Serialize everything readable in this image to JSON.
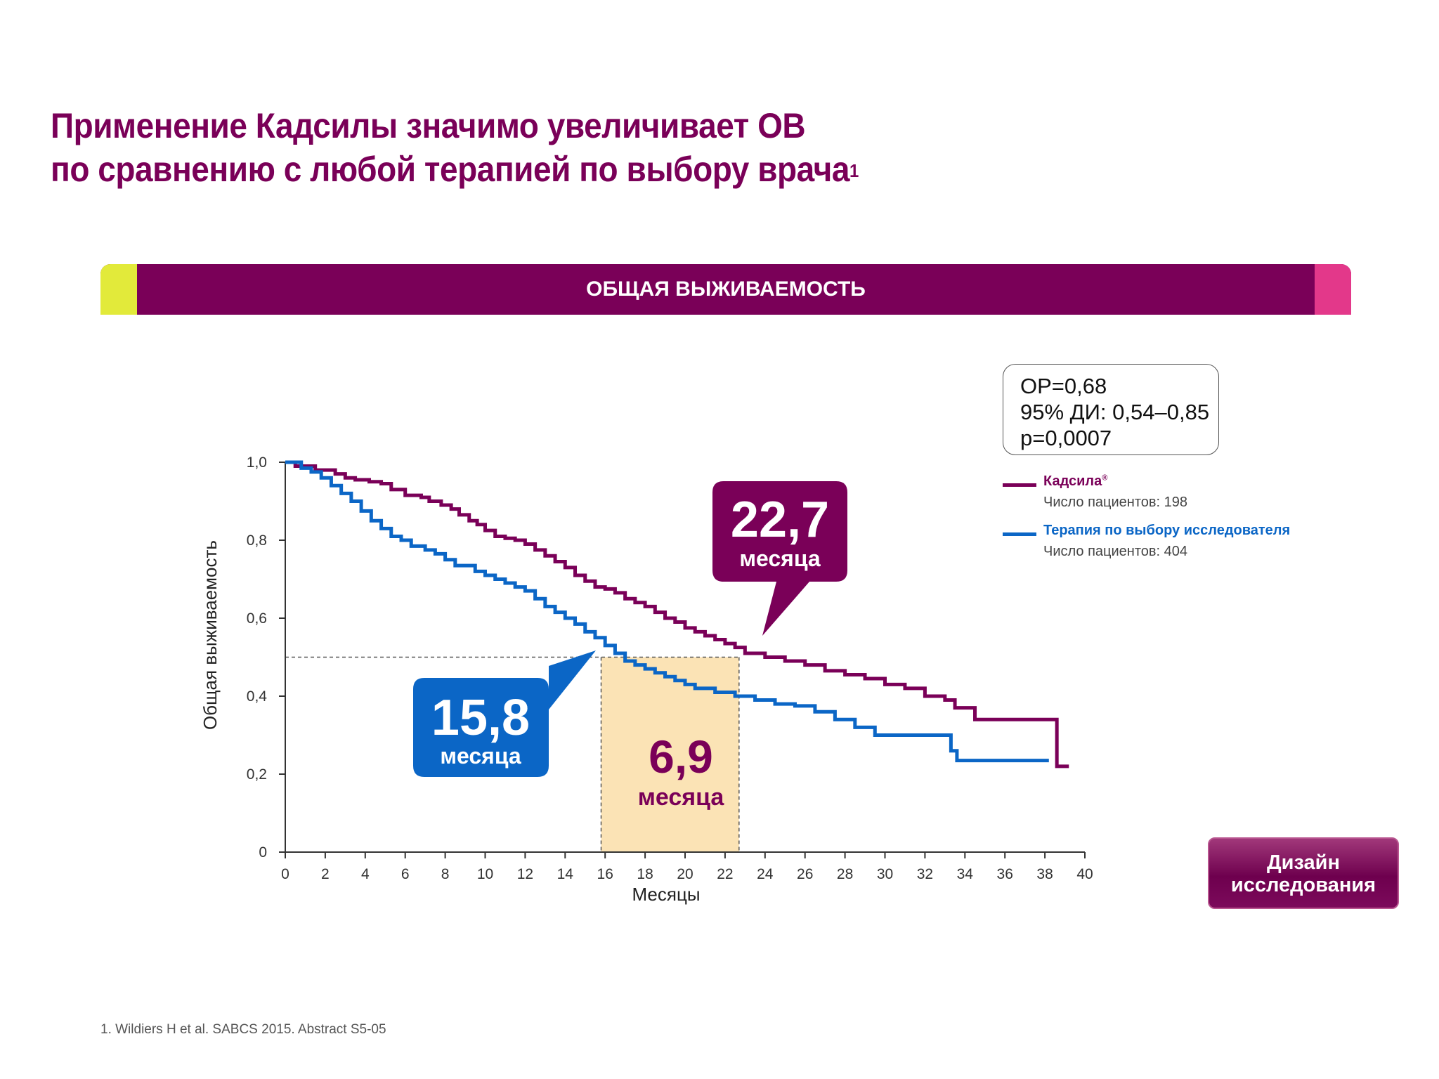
{
  "title": {
    "line1": "Применение Кадсилы значимо увеличивает ОВ",
    "line2": "по сравнению с любой терапией по выбору врача",
    "superscript": "1"
  },
  "banner": {
    "label": "ОБЩАЯ ВЫЖИВАЕМОСТЬ",
    "colors": {
      "main": "#7a0058",
      "left_cap": "#e2ea3a",
      "right_cap": "#e3388a"
    }
  },
  "stats": {
    "hr": "ОР=0,68",
    "ci": "95% ДИ: 0,54–0,85",
    "p": "p=0,0007"
  },
  "legend": {
    "kadcyla": {
      "name": "Кадсила",
      "mark": "®",
      "patients": "Число пациентов: 198",
      "color": "#7a0058"
    },
    "physician": {
      "name": "Терапия по выбору исследователя",
      "patients": "Число пациентов: 404",
      "color": "#0b66c6"
    }
  },
  "callouts": {
    "kadcyla": {
      "value": "22,7",
      "unit": "месяца"
    },
    "physician": {
      "value": "15,8",
      "unit": "месяца"
    },
    "difference": {
      "value": "6,9",
      "unit": "месяца"
    }
  },
  "design_button": {
    "line1": "Дизайн",
    "line2": "исследования"
  },
  "footnote": "1. Wildiers H et al. SABCS 2015. Abstract S5-05",
  "chart_data": {
    "type": "line",
    "xlabel": "Месяцы",
    "ylabel": "Общая выживаемость",
    "xlim": [
      0,
      40
    ],
    "ylim": [
      0,
      1.0
    ],
    "xticks": [
      0,
      2,
      4,
      6,
      8,
      10,
      12,
      14,
      16,
      18,
      20,
      22,
      24,
      26,
      28,
      30,
      32,
      34,
      36,
      38,
      40
    ],
    "xtick_labels": [
      "0",
      "2",
      "4",
      "6",
      "8",
      "10",
      "12",
      "14",
      "16",
      "18",
      "20",
      "22",
      "24",
      "26",
      "28",
      "30",
      "32",
      "34",
      "36",
      "38",
      "40"
    ],
    "yticks": [
      0,
      0.2,
      0.4,
      0.6,
      0.8,
      1.0
    ],
    "ytick_labels": [
      "0",
      "0,2",
      "0,4",
      "0,6",
      "0,8",
      "1,0"
    ],
    "grid": false,
    "median_reference_y": 0.5,
    "highlight_x_range": [
      15.8,
      22.7
    ],
    "highlight_color": "#fbe3b5",
    "series": [
      {
        "name": "Кадсила",
        "color": "#7a0058",
        "step": true,
        "points": [
          [
            0,
            1.0
          ],
          [
            0.5,
            0.99
          ],
          [
            1.5,
            0.98
          ],
          [
            2.5,
            0.97
          ],
          [
            3.0,
            0.96
          ],
          [
            3.5,
            0.955
          ],
          [
            4.2,
            0.95
          ],
          [
            4.8,
            0.945
          ],
          [
            5.3,
            0.93
          ],
          [
            6.0,
            0.915
          ],
          [
            6.8,
            0.91
          ],
          [
            7.2,
            0.9
          ],
          [
            7.8,
            0.89
          ],
          [
            8.3,
            0.88
          ],
          [
            8.7,
            0.865
          ],
          [
            9.2,
            0.85
          ],
          [
            9.6,
            0.84
          ],
          [
            10.0,
            0.825
          ],
          [
            10.5,
            0.81
          ],
          [
            11.0,
            0.805
          ],
          [
            11.5,
            0.8
          ],
          [
            12.0,
            0.79
          ],
          [
            12.5,
            0.775
          ],
          [
            13.0,
            0.76
          ],
          [
            13.5,
            0.745
          ],
          [
            14.0,
            0.73
          ],
          [
            14.5,
            0.71
          ],
          [
            15.0,
            0.695
          ],
          [
            15.5,
            0.68
          ],
          [
            16.0,
            0.675
          ],
          [
            16.5,
            0.665
          ],
          [
            17.0,
            0.65
          ],
          [
            17.5,
            0.64
          ],
          [
            18.0,
            0.63
          ],
          [
            18.5,
            0.615
          ],
          [
            19.0,
            0.6
          ],
          [
            19.5,
            0.59
          ],
          [
            20.0,
            0.575
          ],
          [
            20.5,
            0.565
          ],
          [
            21.0,
            0.555
          ],
          [
            21.5,
            0.545
          ],
          [
            22.0,
            0.535
          ],
          [
            22.5,
            0.525
          ],
          [
            23.0,
            0.51
          ],
          [
            24.0,
            0.5
          ],
          [
            25.0,
            0.49
          ],
          [
            26.0,
            0.48
          ],
          [
            27.0,
            0.465
          ],
          [
            28.0,
            0.455
          ],
          [
            29.0,
            0.445
          ],
          [
            30.0,
            0.43
          ],
          [
            31.0,
            0.42
          ],
          [
            32.0,
            0.4
          ],
          [
            33.0,
            0.39
          ],
          [
            33.5,
            0.37
          ],
          [
            34.5,
            0.34
          ],
          [
            38.5,
            0.34
          ],
          [
            38.6,
            0.22
          ],
          [
            39.2,
            0.22
          ]
        ]
      },
      {
        "name": "Терапия по выбору исследователя",
        "color": "#0b66c6",
        "step": true,
        "points": [
          [
            0,
            1.0
          ],
          [
            0.8,
            0.985
          ],
          [
            1.3,
            0.975
          ],
          [
            1.8,
            0.96
          ],
          [
            2.3,
            0.94
          ],
          [
            2.8,
            0.92
          ],
          [
            3.3,
            0.9
          ],
          [
            3.8,
            0.875
          ],
          [
            4.3,
            0.85
          ],
          [
            4.8,
            0.83
          ],
          [
            5.3,
            0.81
          ],
          [
            5.8,
            0.8
          ],
          [
            6.3,
            0.785
          ],
          [
            7.0,
            0.775
          ],
          [
            7.5,
            0.765
          ],
          [
            8.0,
            0.75
          ],
          [
            8.5,
            0.735
          ],
          [
            9.5,
            0.72
          ],
          [
            10.0,
            0.71
          ],
          [
            10.5,
            0.7
          ],
          [
            11.0,
            0.69
          ],
          [
            11.5,
            0.68
          ],
          [
            12.0,
            0.67
          ],
          [
            12.5,
            0.65
          ],
          [
            13.0,
            0.63
          ],
          [
            13.5,
            0.615
          ],
          [
            14.0,
            0.6
          ],
          [
            14.5,
            0.585
          ],
          [
            15.0,
            0.565
          ],
          [
            15.5,
            0.55
          ],
          [
            16.0,
            0.53
          ],
          [
            16.5,
            0.51
          ],
          [
            17.0,
            0.49
          ],
          [
            17.5,
            0.48
          ],
          [
            18.0,
            0.47
          ],
          [
            18.5,
            0.46
          ],
          [
            19.0,
            0.45
          ],
          [
            19.5,
            0.44
          ],
          [
            20.0,
            0.43
          ],
          [
            20.5,
            0.42
          ],
          [
            21.5,
            0.41
          ],
          [
            22.5,
            0.4
          ],
          [
            23.5,
            0.39
          ],
          [
            24.5,
            0.38
          ],
          [
            25.5,
            0.375
          ],
          [
            26.5,
            0.36
          ],
          [
            27.5,
            0.34
          ],
          [
            28.5,
            0.32
          ],
          [
            29.5,
            0.3
          ],
          [
            33.0,
            0.3
          ],
          [
            33.3,
            0.26
          ],
          [
            33.6,
            0.235
          ],
          [
            38.2,
            0.235
          ]
        ]
      }
    ]
  }
}
